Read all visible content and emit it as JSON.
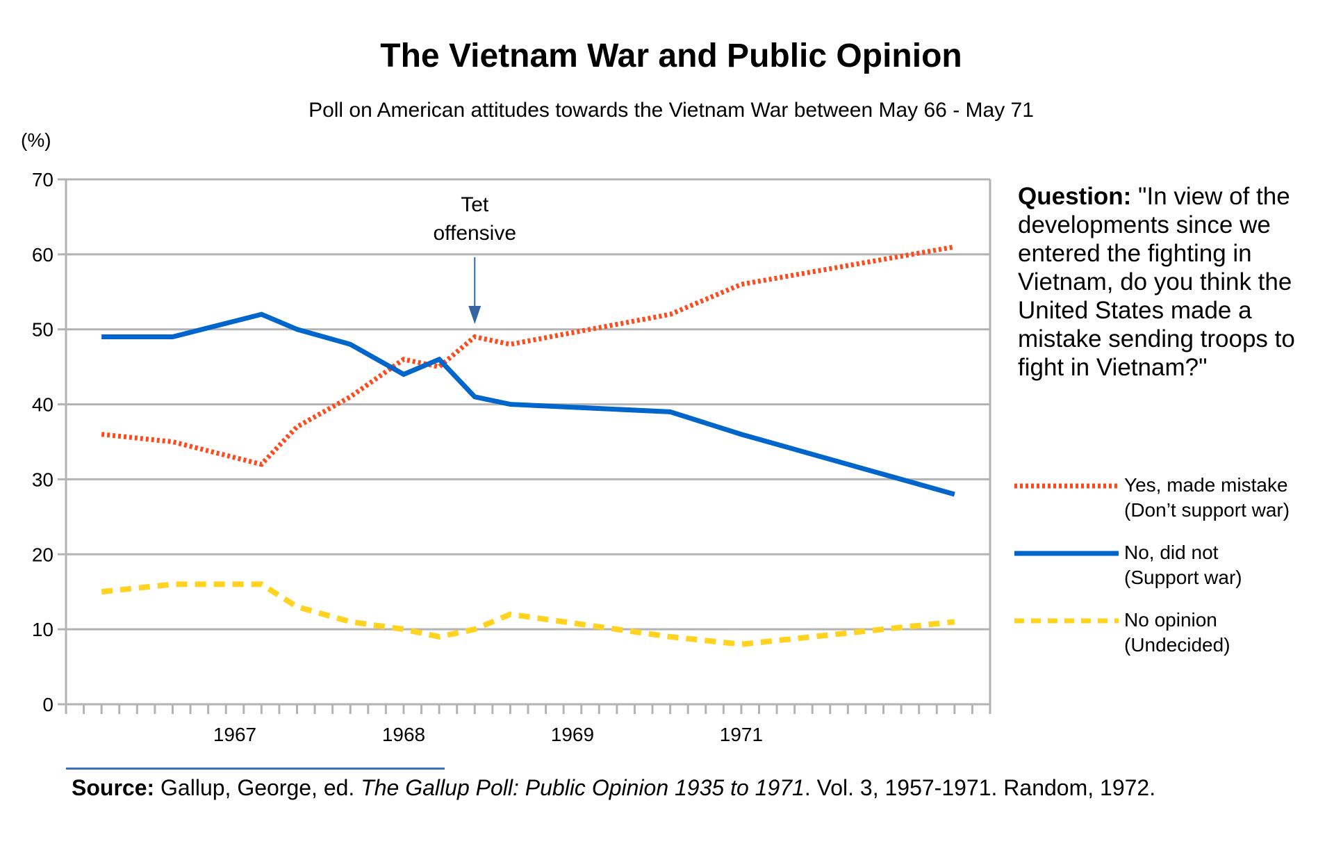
{
  "chart_data": {
    "type": "line",
    "title": "The Vietnam War and Public Opinion",
    "subtitle": "Poll on American attitudes towards the Vietnam War between May 66 - May 71",
    "ylabel": "(%)",
    "xlabel": "",
    "ylim": [
      0,
      70
    ],
    "yticks": [
      0,
      10,
      20,
      30,
      40,
      50,
      60,
      70
    ],
    "grid": true,
    "x_tick_count": 52,
    "x_labels": [
      {
        "label": "1967",
        "tick": 9.5
      },
      {
        "label": "1968",
        "tick": 19
      },
      {
        "label": "1969",
        "tick": 28.5
      },
      {
        "label": "1971",
        "tick": 38
      }
    ],
    "x": [
      2,
      6,
      11,
      13,
      16,
      19,
      21,
      23,
      25,
      34,
      38,
      50
    ],
    "series": [
      {
        "name": "Yes, made mistake (Don’t support war)",
        "style": "dotted",
        "color": "#ff4a1c",
        "values": [
          36,
          35,
          32,
          37,
          41,
          46,
          45,
          49,
          48,
          52,
          56,
          61
        ]
      },
      {
        "name": "No, did not (Support war)",
        "style": "solid",
        "color": "#0066cc",
        "values": [
          49,
          49,
          52,
          50,
          48,
          44,
          46,
          41,
          40,
          39,
          36,
          28
        ]
      },
      {
        "name": "No opinion (Undecided)",
        "style": "dashed",
        "color": "#ffd320",
        "values": [
          15,
          16,
          16,
          13,
          11,
          10,
          9,
          10,
          12,
          9,
          8,
          11
        ]
      }
    ],
    "annotations": [
      {
        "text_lines": [
          "Tet",
          "offensive"
        ],
        "x_tick": 23,
        "arrow_color": "#3465a4"
      }
    ],
    "legend_position": "right"
  },
  "question": {
    "label": "Question:",
    "text": " \"In view of the developments since we entered the fighting in Vietnam, do you think the United States made a mistake sending troops to fight in Vietnam?\""
  },
  "legend": [
    {
      "line1": "Yes, made mistake",
      "line2": "(Don’t support war)"
    },
    {
      "line1": "No, did not",
      "line2": "(Support war)"
    },
    {
      "line1": "No opinion",
      "line2": "(Undecided)"
    }
  ],
  "source": {
    "label": "Source:",
    "text_before": " Gallup, George, ed. ",
    "italic": "The Gallup Poll: Public Opinion 1935 to 1971",
    "text_after": ". Vol. 3, 1957-1971. Random, 1972."
  }
}
